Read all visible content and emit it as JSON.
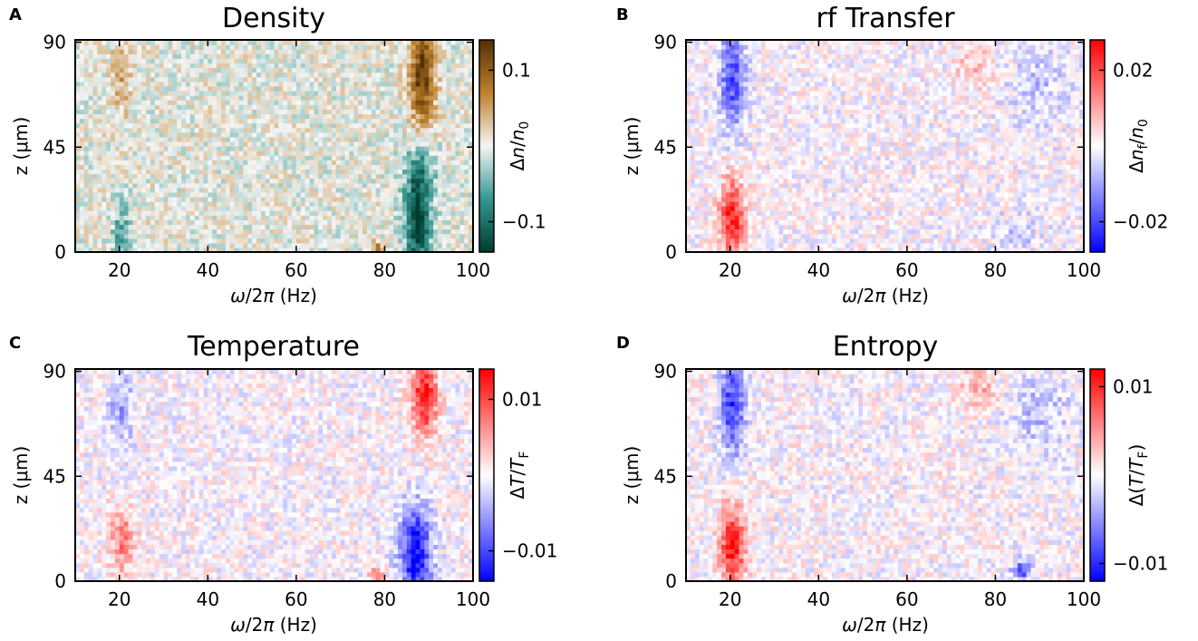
{
  "chart_data": [
    {
      "type": "heatmap",
      "panel_letter": "A",
      "title": "Density",
      "xlabel": "ω/2π (Hz)",
      "ylabel": "z (μm)",
      "xlim": [
        10,
        100
      ],
      "ylim": [
        0,
        91
      ],
      "xticks": [
        20,
        40,
        60,
        80,
        100
      ],
      "yticks": [
        0,
        45,
        90
      ],
      "colorbar": {
        "label": "Δn/n0",
        "label_parts": [
          "Δ",
          "n",
          "/",
          "n",
          "0"
        ],
        "cmap": "BrBG",
        "range": [
          -0.14,
          0.14
        ],
        "ticks": [
          0.1,
          -0.1
        ],
        "tick_labels": [
          "0.1",
          "−0.1"
        ],
        "colors": [
          "#003c30",
          "#35978f",
          "#f5f5f5",
          "#bf812d",
          "#543005"
        ]
      },
      "features": [
        {
          "x": 20.5,
          "z": 78,
          "value": 0.045,
          "sx": 1.5,
          "sz": 14
        },
        {
          "x": 20.5,
          "z": 8,
          "value": -0.06,
          "sx": 1.5,
          "sz": 10
        },
        {
          "x": 88.5,
          "z": 76,
          "value": 0.13,
          "sx": 2.0,
          "sz": 16
        },
        {
          "x": 87.5,
          "z": 12,
          "value": -0.14,
          "sx": 2.0,
          "sz": 14
        },
        {
          "x": 88.0,
          "z": 35,
          "value": -0.06,
          "sx": 2.5,
          "sz": 10
        },
        {
          "x": 78.5,
          "z": 2,
          "value": 0.08,
          "sx": 1.0,
          "sz": 2
        }
      ]
    },
    {
      "type": "heatmap",
      "panel_letter": "B",
      "title": "rf Transfer",
      "xlabel": "ω/2π (Hz)",
      "ylabel": "z (μm)",
      "xlim": [
        10,
        100
      ],
      "ylim": [
        0,
        91
      ],
      "xticks": [
        20,
        40,
        60,
        80,
        100
      ],
      "yticks": [
        0,
        45,
        90
      ],
      "colorbar": {
        "label": "Δnf/n0",
        "label_parts": [
          "Δ",
          "n",
          "f",
          "/",
          "n",
          "0"
        ],
        "cmap": "bwr",
        "range": [
          -0.028,
          0.028
        ],
        "ticks": [
          0.02,
          -0.02
        ],
        "tick_labels": [
          "0.02",
          "−0.02"
        ],
        "colors": [
          "#0000ff",
          "#ffffff",
          "#ff0000"
        ]
      },
      "features": [
        {
          "x": 20.5,
          "z": 75,
          "value": -0.02,
          "sx": 2.0,
          "sz": 15
        },
        {
          "x": 20.5,
          "z": 15,
          "value": 0.025,
          "sx": 2.0,
          "sz": 12
        },
        {
          "x": 90.0,
          "z": 72,
          "value": -0.006,
          "sx": 5.0,
          "sz": 12
        },
        {
          "x": 85.0,
          "z": 8,
          "value": -0.006,
          "sx": 3.0,
          "sz": 6
        },
        {
          "x": 75.0,
          "z": 80,
          "value": 0.007,
          "sx": 3.0,
          "sz": 6
        }
      ]
    },
    {
      "type": "heatmap",
      "panel_letter": "C",
      "title": "Temperature",
      "xlabel": "ω/2π (Hz)",
      "ylabel": "z (μm)",
      "xlim": [
        10,
        100
      ],
      "ylim": [
        0,
        91
      ],
      "xticks": [
        20,
        40,
        60,
        80,
        100
      ],
      "yticks": [
        0,
        45,
        90
      ],
      "colorbar": {
        "label": "ΔT/TF",
        "label_parts": [
          "Δ",
          "T",
          "/",
          "T",
          "F"
        ],
        "cmap": "bwr",
        "range": [
          -0.014,
          0.014
        ],
        "ticks": [
          0.01,
          -0.01
        ],
        "tick_labels": [
          "0.01",
          "−0.01"
        ],
        "colors": [
          "#0000ff",
          "#ffffff",
          "#ff0000"
        ]
      },
      "features": [
        {
          "x": 89.0,
          "z": 80,
          "value": 0.013,
          "sx": 2.0,
          "sz": 12
        },
        {
          "x": 87.0,
          "z": 12,
          "value": -0.014,
          "sx": 2.5,
          "sz": 14
        },
        {
          "x": 20.5,
          "z": 18,
          "value": 0.007,
          "sx": 2.0,
          "sz": 10
        },
        {
          "x": 20.5,
          "z": 75,
          "value": -0.005,
          "sx": 2.0,
          "sz": 12
        },
        {
          "x": 78.0,
          "z": 3,
          "value": 0.009,
          "sx": 1.0,
          "sz": 2
        }
      ]
    },
    {
      "type": "heatmap",
      "panel_letter": "D",
      "title": "Entropy",
      "xlabel": "ω/2π (Hz)",
      "ylabel": "z (μm)",
      "xlim": [
        10,
        100
      ],
      "ylim": [
        0,
        91
      ],
      "xticks": [
        20,
        40,
        60,
        80,
        100
      ],
      "yticks": [
        0,
        45,
        90
      ],
      "colorbar": {
        "label": "Δ(T/TF)",
        "label_parts": [
          "Δ(",
          "T",
          "/",
          "T",
          "F",
          ")"
        ],
        "cmap": "bwr",
        "range": [
          -0.012,
          0.012
        ],
        "ticks": [
          0.01,
          -0.01
        ],
        "tick_labels": [
          "0.01",
          "−0.01"
        ],
        "colors": [
          "#0000ff",
          "#ffffff",
          "#ff0000"
        ]
      },
      "features": [
        {
          "x": 20.5,
          "z": 75,
          "value": -0.009,
          "sx": 2.0,
          "sz": 15
        },
        {
          "x": 20.5,
          "z": 15,
          "value": 0.011,
          "sx": 2.0,
          "sz": 12
        },
        {
          "x": 86.0,
          "z": 5,
          "value": -0.009,
          "sx": 1.5,
          "sz": 3
        },
        {
          "x": 90.0,
          "z": 72,
          "value": -0.003,
          "sx": 5.0,
          "sz": 12
        },
        {
          "x": 76.0,
          "z": 82,
          "value": 0.004,
          "sx": 3.0,
          "sz": 6
        }
      ]
    }
  ]
}
